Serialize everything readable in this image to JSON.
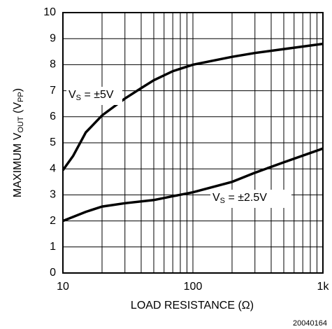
{
  "chart_data": {
    "type": "line",
    "y_label": [
      "MAXIMUM V",
      "OUT",
      " (V",
      "PP",
      ")"
    ],
    "x_label": "LOAD RESISTANCE (Ω)",
    "figure_code": "20040164",
    "log_x": true,
    "grid": true,
    "xlim": [
      10,
      1000
    ],
    "ylim": [
      0,
      10
    ],
    "xticks": [
      10,
      100,
      {
        "value": 1000,
        "label": "1k"
      }
    ],
    "x_grid": [
      20,
      30,
      40,
      50,
      60,
      70,
      80,
      90,
      200,
      300,
      400,
      500,
      600,
      700,
      800,
      900
    ],
    "yticks": [
      0,
      1,
      2,
      3,
      4,
      5,
      6,
      7,
      8,
      9,
      10
    ],
    "series": [
      {
        "color": "#000000",
        "annotation": [
          "V",
          "S",
          " = ±5V"
        ],
        "x": [
          10,
          12,
          15,
          20,
          30,
          40,
          50,
          70,
          100,
          200,
          300,
          500,
          1000
        ],
        "values": [
          3.95,
          4.5,
          5.4,
          6.05,
          6.7,
          7.1,
          7.4,
          7.75,
          8.0,
          8.3,
          8.45,
          8.6,
          8.8
        ]
      },
      {
        "color": "#000000",
        "annotation": [
          "V",
          "S",
          " = ±2.5V"
        ],
        "x": [
          10,
          15,
          20,
          30,
          50,
          70,
          100,
          200,
          300,
          500,
          1000
        ],
        "values": [
          2.0,
          2.35,
          2.55,
          2.68,
          2.8,
          2.95,
          3.1,
          3.5,
          3.85,
          4.25,
          4.78
        ]
      }
    ]
  }
}
